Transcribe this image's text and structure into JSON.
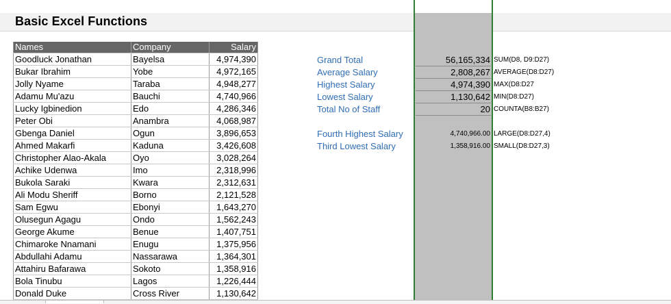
{
  "sheet": {
    "title": "Basic Excel Functions"
  },
  "table": {
    "headers": [
      "Names",
      "Company",
      "Salary"
    ],
    "rows": [
      [
        "Goodluck Jonathan",
        "Bayelsa",
        "4,974,390"
      ],
      [
        "Bukar Ibrahim",
        "Yobe",
        "4,972,165"
      ],
      [
        "Jolly Nyame",
        "Taraba",
        "4,948,277"
      ],
      [
        "Adamu Mu'azu",
        "Bauchi",
        "4,740,966"
      ],
      [
        "Lucky Igbinedion",
        "Edo",
        "4,286,346"
      ],
      [
        "Peter Obi",
        "Anambra",
        "4,068,987"
      ],
      [
        "Gbenga Daniel",
        "Ogun",
        "3,896,653"
      ],
      [
        "Ahmed Makarfi",
        "Kaduna",
        "3,426,608"
      ],
      [
        "Christopher Alao-Akala",
        "Oyo",
        "3,028,264"
      ],
      [
        "Achike Udenwa",
        "Imo",
        "2,318,996"
      ],
      [
        "Bukola Saraki",
        "Kwara",
        "2,312,631"
      ],
      [
        "Ali Modu Sheriff",
        "Borno",
        "2,121,528"
      ],
      [
        "Sam Egwu",
        "Ebonyi",
        "1,643,270"
      ],
      [
        "Olusegun Agagu",
        "Ondo",
        "1,562,243"
      ],
      [
        "George Akume",
        "Benue",
        "1,407,751"
      ],
      [
        "Chimaroke Nnamani",
        "Enugu",
        "1,375,956"
      ],
      [
        "Abdullahi Adamu",
        "Nassarawa",
        "1,364,301"
      ],
      [
        "Attahiru Bafarawa",
        "Sokoto",
        "1,358,916"
      ],
      [
        "Bola Tinubu",
        "Lagos",
        "1,226,444"
      ],
      [
        "Donald Duke",
        "Cross River",
        "1,130,642"
      ]
    ]
  },
  "summary": {
    "labels": [
      "Grand Total",
      "Average Salary",
      "Highest Salary",
      "Lowest Salary",
      "Total No of Staff",
      "",
      "Fourth Highest Salary",
      "Third Lowest Salary"
    ],
    "values": [
      "56,165,334",
      "2,808,267",
      "4,974,390",
      "1,130,642",
      "20",
      "",
      "4,740,966.00",
      "1,358,916.00"
    ],
    "formulas": [
      "SUM(D8, D9:D27)",
      "AVERAGE(D8:D27)",
      "MAX(D8:D27",
      "MIN(D8:D27)",
      "COUNTA(B8:B27)",
      "",
      "LARGE(D8:D27,4)",
      "SMALL(D8:D27,3)"
    ]
  },
  "colors": {
    "header_bg": "#666666",
    "label_blue": "#2f6eb5",
    "highlight_col": "#c0c0c0",
    "gridline_green": "#2e7d32"
  }
}
